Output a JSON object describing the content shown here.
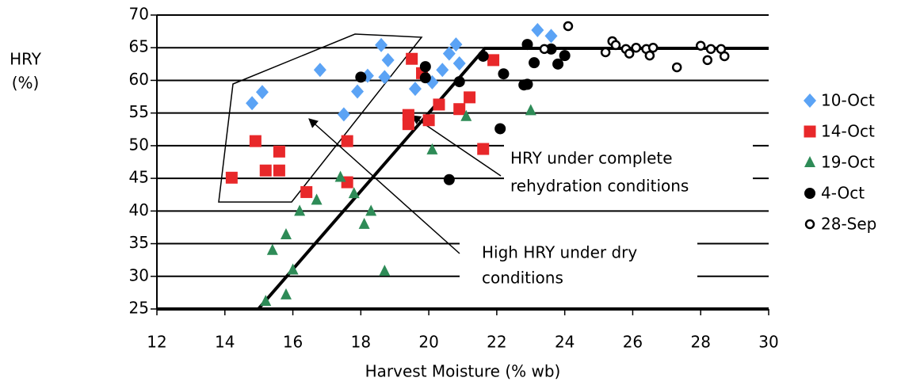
{
  "chart_data": {
    "type": "scatter",
    "y_label": [
      "HRY",
      "(%)"
    ],
    "x_label": "Harvest Moisture (% wb)",
    "xlim": [
      12,
      30
    ],
    "xticks": [
      12,
      14,
      16,
      18,
      20,
      22,
      24,
      26,
      28,
      30
    ],
    "ylim": [
      25,
      70
    ],
    "yticks": [
      25,
      30,
      35,
      40,
      45,
      50,
      55,
      60,
      65,
      70
    ],
    "grid": true,
    "legend": "right",
    "annotations": [
      [
        "HRY under complete",
        "rehydration conditions"
      ],
      [
        "High HRY under dry",
        "conditions"
      ]
    ],
    "series": [
      {
        "name": "10-Oct",
        "color": "#5ba3f5",
        "marker": "diamond",
        "x": [
          14.8,
          15.1,
          16.8,
          17.5,
          17.9,
          18.2,
          18.6,
          18.7,
          18.8,
          19.6,
          20.1,
          20.4,
          20.6,
          20.8,
          20.9,
          23.2,
          23.6
        ],
        "values": [
          56.5,
          58.2,
          61.6,
          54.8,
          58.3,
          60.7,
          65.4,
          60.5,
          63.1,
          58.7,
          59.7,
          61.6,
          64.1,
          65.5,
          62.6,
          67.7,
          66.8
        ]
      },
      {
        "name": "14-Oct",
        "color": "#e8282a",
        "marker": "square",
        "x": [
          14.2,
          14.9,
          15.2,
          15.6,
          15.6,
          16.4,
          17.6,
          17.6,
          19.5,
          19.8,
          19.4,
          19.4,
          20.0,
          20.3,
          20.9,
          21.2,
          21.6,
          21.9
        ],
        "values": [
          45.1,
          50.7,
          46.2,
          49.1,
          46.2,
          42.9,
          50.7,
          44.4,
          63.3,
          61.1,
          54.7,
          53.3,
          53.9,
          56.3,
          55.6,
          57.4,
          49.5,
          63.1
        ]
      },
      {
        "name": "19-Oct",
        "color": "#2e8b57",
        "marker": "triangle",
        "x": [
          15.2,
          15.4,
          15.8,
          15.8,
          16.0,
          16.2,
          16.7,
          17.4,
          17.8,
          18.1,
          18.3,
          18.7,
          20.1,
          21.1,
          23.0
        ],
        "values": [
          26.2,
          34.0,
          36.4,
          27.2,
          31.0,
          40.0,
          41.7,
          45.2,
          42.7,
          38.0,
          40.0,
          30.8,
          49.4,
          54.5,
          55.4
        ]
      },
      {
        "name": "4-Oct",
        "color": "#000000",
        "marker": "circle",
        "x": [
          18.0,
          19.9,
          19.9,
          20.6,
          20.9,
          21.6,
          22.2,
          22.1,
          22.8,
          22.9,
          22.9,
          23.1,
          23.6,
          23.8,
          24.0
        ],
        "values": [
          60.5,
          62.1,
          60.4,
          44.8,
          59.8,
          63.7,
          61.0,
          52.6,
          59.3,
          59.4,
          65.5,
          62.7,
          64.8,
          62.5,
          63.8
        ]
      },
      {
        "name": "28-Sep",
        "color": "#000000",
        "marker": "open-circle",
        "x": [
          23.4,
          24.1,
          25.2,
          25.4,
          25.5,
          25.8,
          25.9,
          26.1,
          26.4,
          26.5,
          26.6,
          27.3,
          28.0,
          28.2,
          28.3,
          28.6,
          28.7
        ],
        "values": [
          64.8,
          68.3,
          64.3,
          66.0,
          65.4,
          64.8,
          64.1,
          65.0,
          64.8,
          63.8,
          65.0,
          62.0,
          65.3,
          63.1,
          64.8,
          64.8,
          63.7
        ]
      }
    ]
  }
}
